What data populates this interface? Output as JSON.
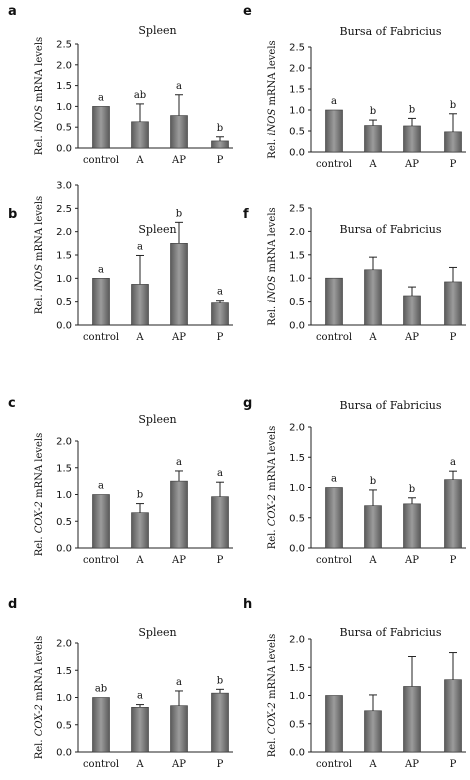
{
  "chart_data": [
    {
      "type": "bar",
      "panel": "a",
      "title": "Spleen",
      "ylabel_pre": "Rel. ",
      "ylabel_gene": "iNOS",
      "ylabel_post": " mRNA levels",
      "categories": [
        "control",
        "A",
        "AP",
        "P"
      ],
      "values": [
        1.0,
        0.63,
        0.78,
        0.17
      ],
      "errors": [
        0.0,
        0.43,
        0.5,
        0.1
      ],
      "letters": [
        "a",
        "ab",
        "a",
        "b"
      ],
      "ylim": [
        0,
        2.5
      ],
      "yticks": [
        "0.0",
        "0.5",
        "1.0",
        "1.5",
        "2.0",
        "2.5"
      ]
    },
    {
      "type": "bar",
      "panel": "e",
      "title": "Bursa of Fabricius",
      "ylabel_pre": "Rel. ",
      "ylabel_gene": "iNOS",
      "ylabel_post": " mRNA levels",
      "categories": [
        "control",
        "A",
        "AP",
        "P"
      ],
      "values": [
        1.0,
        0.63,
        0.62,
        0.48
      ],
      "errors": [
        0.0,
        0.13,
        0.18,
        0.43
      ],
      "letters": [
        "a",
        "b",
        "b",
        "b"
      ],
      "ylim": [
        0,
        2.5
      ],
      "yticks": [
        "0.0",
        "0.5",
        "1.0",
        "1.5",
        "2.0",
        "2.5"
      ]
    },
    {
      "type": "bar",
      "panel": "b",
      "title": "Spleen",
      "ylabel_pre": "Rel. ",
      "ylabel_gene": "iNOS",
      "ylabel_post": " mRNA levels",
      "categories": [
        "control",
        "A",
        "AP",
        "P"
      ],
      "values": [
        1.0,
        0.87,
        1.75,
        0.48
      ],
      "errors": [
        0.0,
        0.62,
        0.45,
        0.04
      ],
      "letters": [
        "a",
        "a",
        "b",
        "a"
      ],
      "ylim": [
        0,
        3.0
      ],
      "yticks": [
        "0.0",
        "0.5",
        "1.0",
        "1.5",
        "2.0",
        "2.5",
        "3.0"
      ]
    },
    {
      "type": "bar",
      "panel": "f",
      "title": "Bursa of Fabricius",
      "ylabel_pre": "Rel. ",
      "ylabel_gene": "iNOS",
      "ylabel_post": " mRNA levels",
      "categories": [
        "control",
        "A",
        "AP",
        "P"
      ],
      "values": [
        1.0,
        1.18,
        0.62,
        0.92
      ],
      "errors": [
        0.0,
        0.27,
        0.19,
        0.31
      ],
      "letters": [
        "",
        "",
        "",
        ""
      ],
      "ylim": [
        0,
        2.5
      ],
      "yticks": [
        "0.0",
        "0.5",
        "1.0",
        "1.5",
        "2.0",
        "2.5"
      ]
    },
    {
      "type": "bar",
      "panel": "c",
      "title": "Spleen",
      "ylabel_pre": "Rel. ",
      "ylabel_gene": "COX-2",
      "ylabel_post": " mRNA levels",
      "categories": [
        "control",
        "A",
        "AP",
        "P"
      ],
      "values": [
        1.0,
        0.66,
        1.25,
        0.96
      ],
      "errors": [
        0.0,
        0.17,
        0.19,
        0.27
      ],
      "letters": [
        "a",
        "b",
        "a",
        "a"
      ],
      "ylim": [
        0,
        2.0
      ],
      "yticks": [
        "0.0",
        "0.5",
        "1.0",
        "1.5",
        "2.0"
      ]
    },
    {
      "type": "bar",
      "panel": "g",
      "title": "Bursa of Fabricius",
      "ylabel_pre": "Rel. ",
      "ylabel_gene": "COX-2",
      "ylabel_post": " mRNA levels",
      "categories": [
        "control",
        "A",
        "AP",
        "P"
      ],
      "values": [
        1.0,
        0.7,
        0.73,
        1.13
      ],
      "errors": [
        0.0,
        0.26,
        0.1,
        0.14
      ],
      "letters": [
        "a",
        "b",
        "b",
        "a"
      ],
      "ylim": [
        0,
        2.0
      ],
      "yticks": [
        "0.0",
        "0.5",
        "1.0",
        "1.5",
        "2.0"
      ]
    },
    {
      "type": "bar",
      "panel": "d",
      "title": "Spleen",
      "ylabel_pre": "Rel. ",
      "ylabel_gene": "COX-2",
      "ylabel_post": " mRNA levels",
      "categories": [
        "control",
        "A",
        "AP",
        "P"
      ],
      "values": [
        1.0,
        0.82,
        0.85,
        1.08
      ],
      "errors": [
        0.0,
        0.05,
        0.27,
        0.07
      ],
      "letters": [
        "ab",
        "a",
        "a",
        "b"
      ],
      "ylim": [
        0,
        2.0
      ],
      "yticks": [
        "0.0",
        "0.5",
        "1.0",
        "1.5",
        "2.0"
      ]
    },
    {
      "type": "bar",
      "panel": "h",
      "title": "Bursa of Fabricius",
      "ylabel_pre": "Rel. ",
      "ylabel_gene": "COX-2",
      "ylabel_post": " mRNA levels",
      "categories": [
        "control",
        "A",
        "AP",
        "P"
      ],
      "values": [
        1.0,
        0.73,
        1.16,
        1.28
      ],
      "errors": [
        0.0,
        0.28,
        0.53,
        0.48
      ],
      "letters": [
        "",
        "",
        "",
        ""
      ],
      "ylim": [
        0,
        2.0
      ],
      "yticks": [
        "0.0",
        "0.5",
        "1.0",
        "1.5",
        "2.0"
      ]
    }
  ],
  "colors": {
    "bar_fill_dark": "#5a5a5a",
    "bar_fill_light": "#9c9c9c",
    "bar_stroke": "#3a3a3a",
    "axis": "#222222",
    "text": "#111111"
  }
}
